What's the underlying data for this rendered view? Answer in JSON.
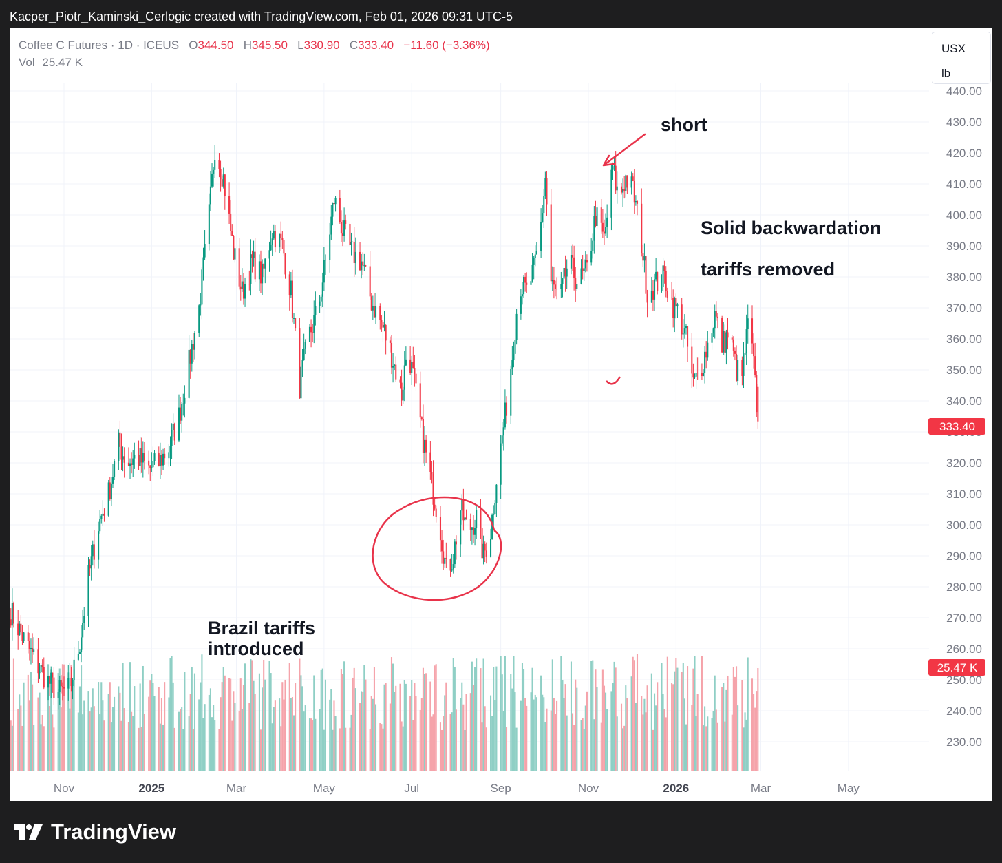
{
  "header": {
    "title": "Kacper_Piotr_Kaminski_Cerlogic created with TradingView.com, Feb 01, 2026 09:31 UTC-5"
  },
  "legend": {
    "symbol": "Coffee C Futures · 1D · ICEUS",
    "open_label": "O",
    "open": "344.50",
    "high_label": "H",
    "high": "345.50",
    "low_label": "L",
    "low": "330.90",
    "close_label": "C",
    "close": "333.40",
    "change": "−11.60 (−3.36%)",
    "vol_label": "Vol",
    "vol": "25.47 K"
  },
  "units": {
    "currency": "USX",
    "unit": "lb"
  },
  "price_badge": "333.40",
  "vol_badge": "25.47 K",
  "annotations": {
    "short": "short",
    "backwardation": "Solid backwardation",
    "tariffs_removed": "tariffs removed",
    "brazil_line1": "Brazil tariffs",
    "brazil_line2": "introduced"
  },
  "footer": {
    "brand": "TradingView"
  },
  "colors": {
    "up": "#089981",
    "down": "#f23645",
    "up_vol": "#8fcfc5",
    "down_vol": "#f5a3aa",
    "annotation": "#e8334a"
  },
  "chart_data": {
    "type": "candlestick",
    "y_ticks": [
      "440.00",
      "430.00",
      "420.00",
      "410.00",
      "400.00",
      "390.00",
      "380.00",
      "370.00",
      "360.00",
      "350.00",
      "340.00",
      "330.00",
      "320.00",
      "310.00",
      "300.00",
      "290.00",
      "280.00",
      "270.00",
      "260.00",
      "250.00",
      "240.00",
      "230.00"
    ],
    "ylim": [
      226,
      446
    ],
    "x_ticks": [
      {
        "label": "Nov",
        "date": "2024-11-01",
        "bold": false
      },
      {
        "label": "2025",
        "date": "2025-01-01",
        "bold": true
      },
      {
        "label": "Mar",
        "date": "2025-03-01",
        "bold": false
      },
      {
        "label": "May",
        "date": "2025-05-01",
        "bold": false
      },
      {
        "label": "Jul",
        "date": "2025-07-01",
        "bold": false
      },
      {
        "label": "Sep",
        "date": "2025-09-01",
        "bold": false
      },
      {
        "label": "Nov",
        "date": "2025-11-01",
        "bold": false
      },
      {
        "label": "2026",
        "date": "2026-01-01",
        "bold": true
      },
      {
        "label": "Mar",
        "date": "2026-03-01",
        "bold": false
      },
      {
        "label": "May",
        "date": "2026-05-01",
        "bold": false
      }
    ],
    "close_path": [
      [
        "2024-09-25",
        272
      ],
      [
        "2024-10-05",
        262
      ],
      [
        "2024-10-12",
        256
      ],
      [
        "2024-10-20",
        250
      ],
      [
        "2024-10-28",
        246
      ],
      [
        "2024-11-05",
        247
      ],
      [
        "2024-11-12",
        262
      ],
      [
        "2024-11-18",
        283
      ],
      [
        "2024-11-25",
        300
      ],
      [
        "2024-12-02",
        310
      ],
      [
        "2024-12-09",
        326
      ],
      [
        "2024-12-15",
        320
      ],
      [
        "2024-12-22",
        322
      ],
      [
        "2024-12-30",
        318
      ],
      [
        "2025-01-06",
        320
      ],
      [
        "2025-01-13",
        325
      ],
      [
        "2025-01-20",
        335
      ],
      [
        "2025-01-27",
        352
      ],
      [
        "2025-02-03",
        370
      ],
      [
        "2025-02-10",
        400
      ],
      [
        "2025-02-14",
        422
      ],
      [
        "2025-02-20",
        412
      ],
      [
        "2025-02-27",
        388
      ],
      [
        "2025-03-05",
        375
      ],
      [
        "2025-03-12",
        385
      ],
      [
        "2025-03-19",
        380
      ],
      [
        "2025-03-26",
        395
      ],
      [
        "2025-04-02",
        390
      ],
      [
        "2025-04-08",
        375
      ],
      [
        "2025-04-14",
        345
      ],
      [
        "2025-04-20",
        360
      ],
      [
        "2025-04-27",
        370
      ],
      [
        "2025-05-02",
        385
      ],
      [
        "2025-05-08",
        405
      ],
      [
        "2025-05-14",
        395
      ],
      [
        "2025-05-20",
        388
      ],
      [
        "2025-05-27",
        385
      ],
      [
        "2025-06-03",
        372
      ],
      [
        "2025-06-10",
        365
      ],
      [
        "2025-06-17",
        355
      ],
      [
        "2025-06-24",
        342
      ],
      [
        "2025-06-28",
        358
      ],
      [
        "2025-07-03",
        345
      ],
      [
        "2025-07-08",
        330
      ],
      [
        "2025-07-14",
        315
      ],
      [
        "2025-07-20",
        302
      ],
      [
        "2025-07-25",
        285
      ],
      [
        "2025-07-30",
        290
      ],
      [
        "2025-08-04",
        305
      ],
      [
        "2025-08-09",
        298
      ],
      [
        "2025-08-15",
        302
      ],
      [
        "2025-08-20",
        290
      ],
      [
        "2025-08-25",
        298
      ],
      [
        "2025-08-29",
        315
      ],
      [
        "2025-09-04",
        335
      ],
      [
        "2025-09-09",
        355
      ],
      [
        "2025-09-14",
        378
      ],
      [
        "2025-09-19",
        375
      ],
      [
        "2025-09-24",
        382
      ],
      [
        "2025-09-28",
        392
      ],
      [
        "2025-10-02",
        412
      ],
      [
        "2025-10-06",
        378
      ],
      [
        "2025-10-12",
        372
      ],
      [
        "2025-10-18",
        385
      ],
      [
        "2025-10-25",
        378
      ],
      [
        "2025-10-31",
        382
      ],
      [
        "2025-11-06",
        400
      ],
      [
        "2025-11-12",
        392
      ],
      [
        "2025-11-18",
        415
      ],
      [
        "2025-11-22",
        405
      ],
      [
        "2025-11-27",
        412
      ],
      [
        "2025-12-02",
        408
      ],
      [
        "2025-12-07",
        395
      ],
      [
        "2025-12-12",
        375
      ],
      [
        "2025-12-18",
        378
      ],
      [
        "2025-12-24",
        380
      ],
      [
        "2025-12-29",
        372
      ],
      [
        "2026-01-03",
        368
      ],
      [
        "2026-01-08",
        360
      ],
      [
        "2026-01-13",
        345
      ],
      [
        "2026-01-18",
        350
      ],
      [
        "2026-01-23",
        358
      ],
      [
        "2026-01-28",
        368
      ],
      [
        "2026-02-02",
        358
      ],
      [
        "2026-02-07",
        362
      ],
      [
        "2026-02-12",
        350
      ],
      [
        "2026-02-16",
        348
      ],
      [
        "2026-02-21",
        368
      ],
      [
        "2026-02-25",
        345
      ],
      [
        "2026-02-27",
        333.4
      ]
    ],
    "last": {
      "open": 344.5,
      "high": 345.5,
      "low": 330.9,
      "close": 333.4,
      "volume": "25.47 K"
    }
  }
}
